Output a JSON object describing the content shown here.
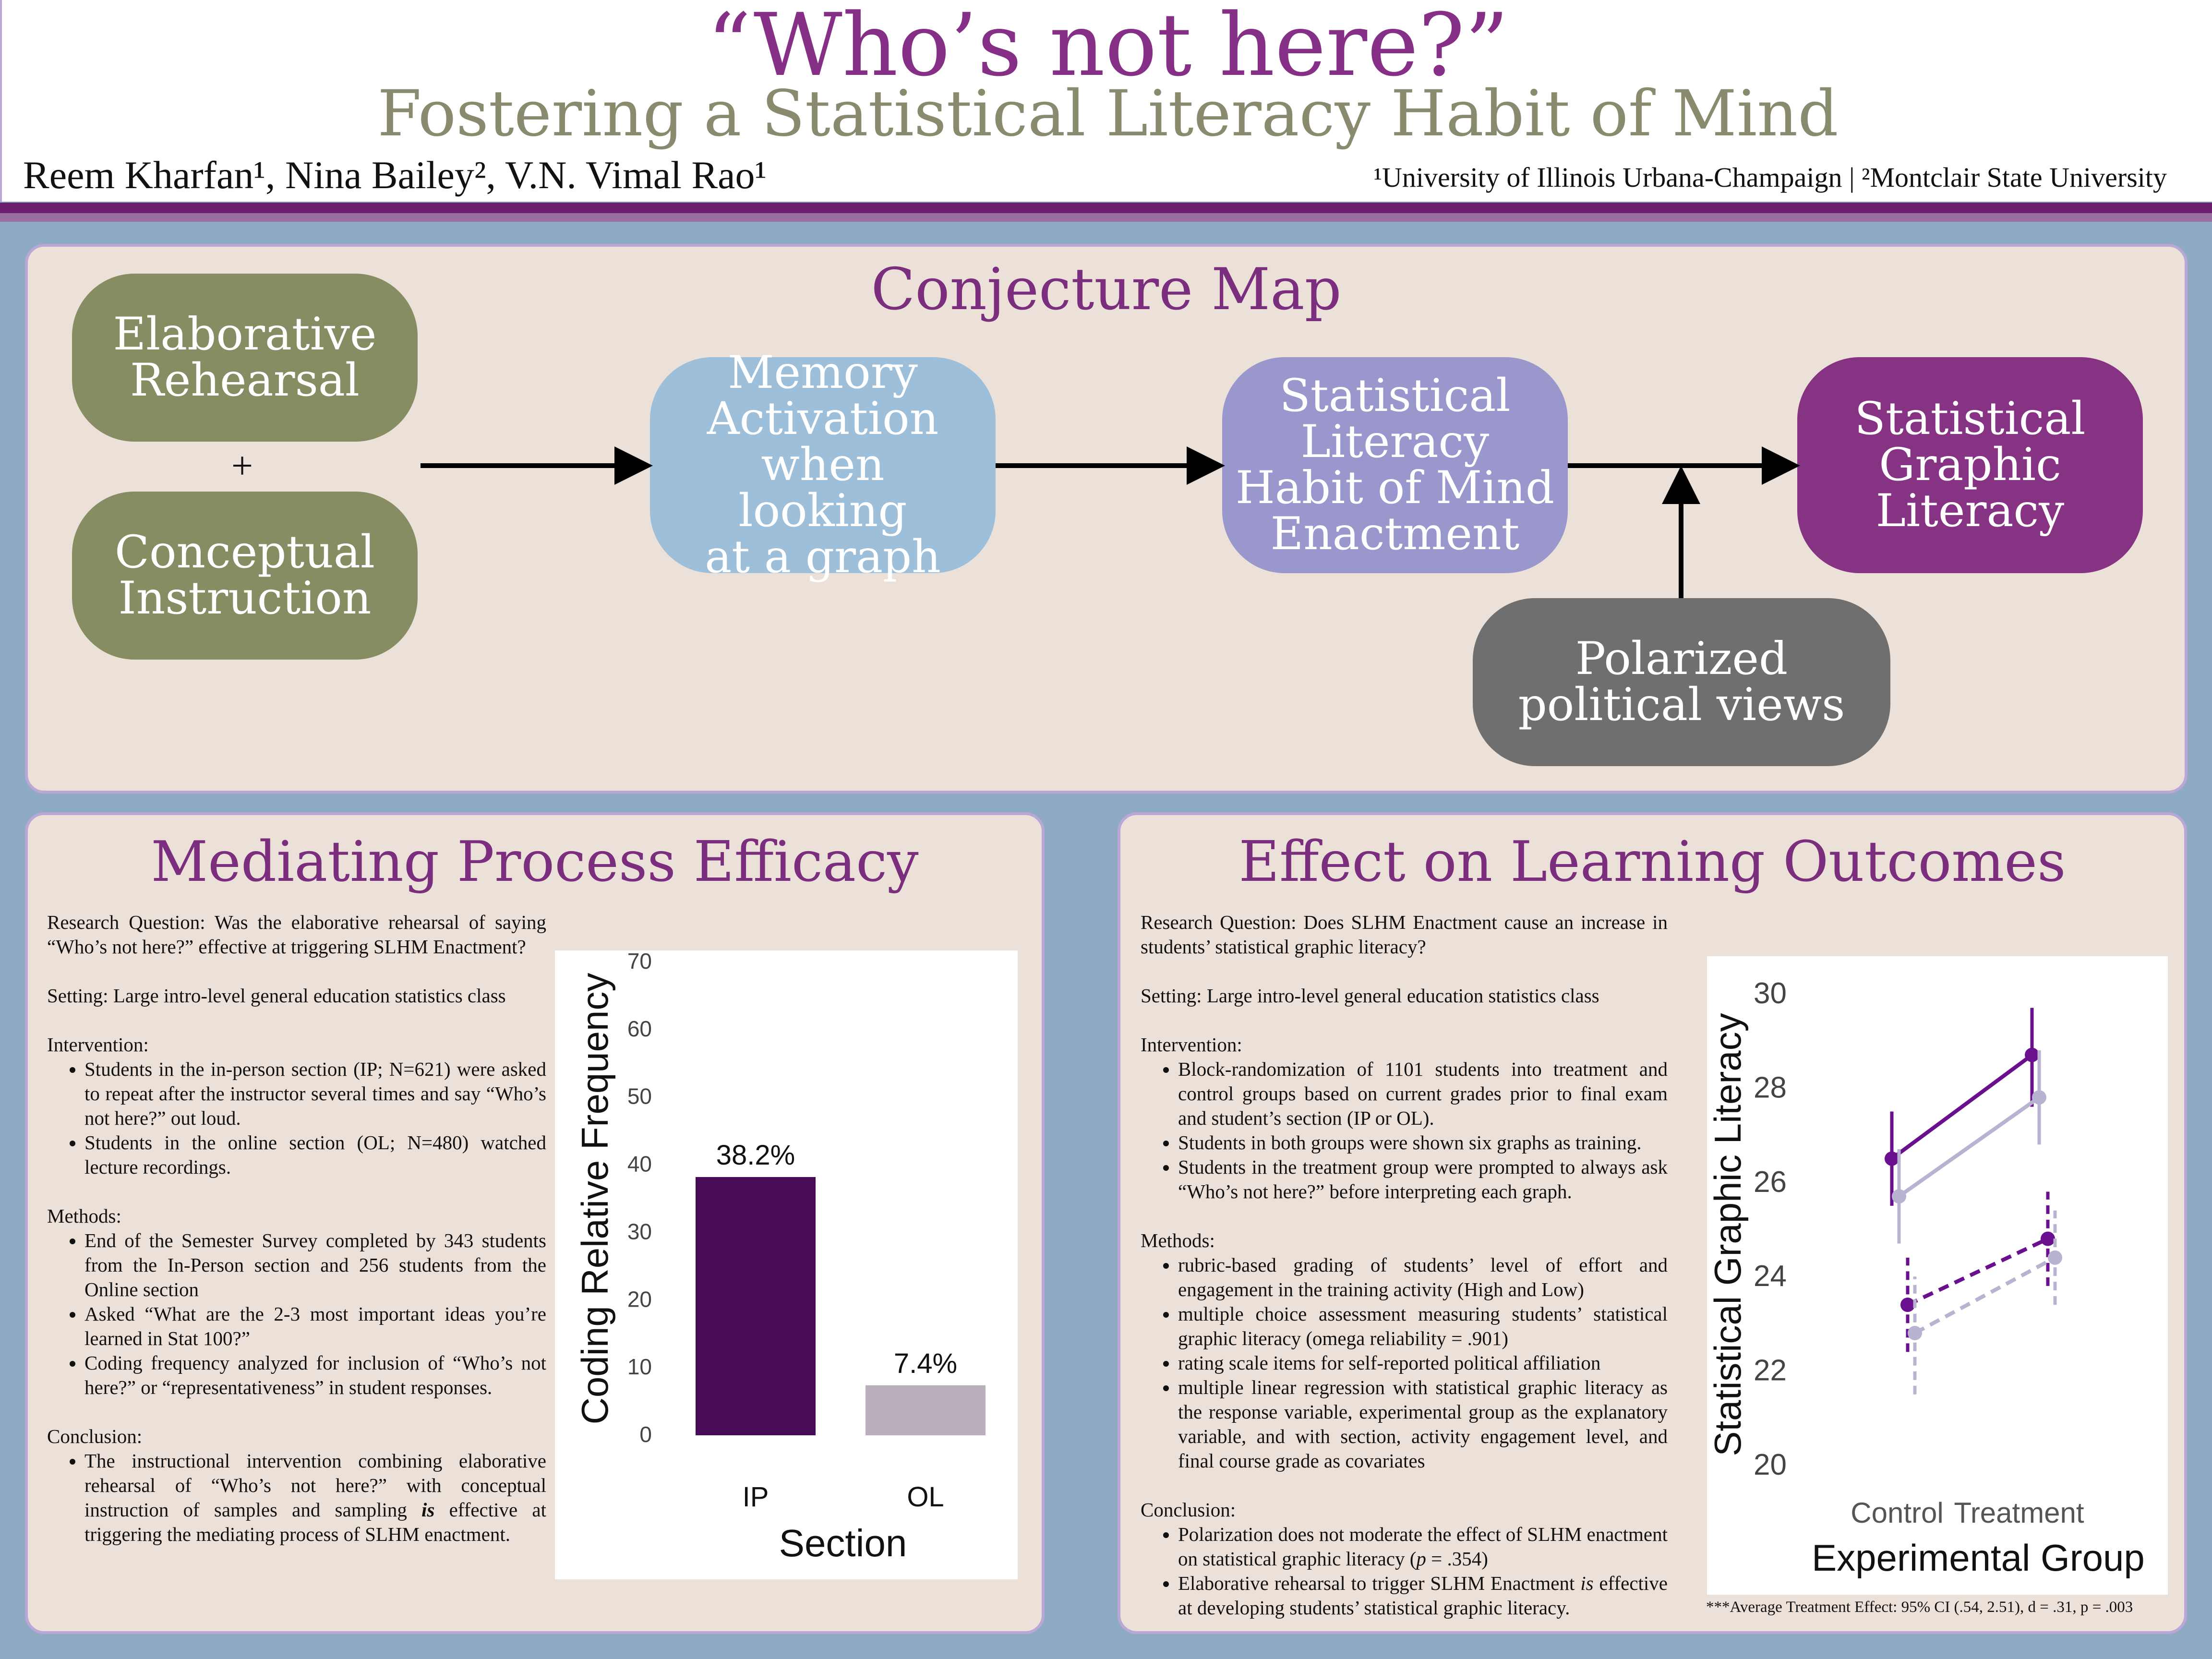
{
  "header": {
    "title": "“Who’s not here?”",
    "subtitle": "Fostering a Statistical Literacy Habit of Mind",
    "authors": "Reem Kharfan¹, Nina Bailey², V.N. Vimal Rao¹",
    "affiliations": "¹University of Illinois Urbana-Champaign | ²Montclair State University"
  },
  "conjecture": {
    "title": "Conjecture Map",
    "plus": "+",
    "nodes": {
      "elaborative": "Elaborative\nRehearsal",
      "conceptual": "Conceptual\nInstruction",
      "memory": "Memory\nActivation when\nlooking\nat a graph",
      "slhm": "Statistical\nLiteracy\nHabit of Mind\nEnactment",
      "sgl": "Statistical\nGraphic\nLiteracy",
      "polarized": "Polarized\npolitical views"
    },
    "colors": {
      "olive": "#868d62",
      "lightblue": "#9ebfda",
      "lavender": "#9a97cc",
      "purple": "#873384",
      "gray": "#6f6f6f"
    }
  },
  "mediating": {
    "title": "Mediating Process Efficacy",
    "rq": "Research Question: Was the elaborative rehearsal of saying “Who’s not here?” effective at triggering SLHM Enactment?",
    "setting": "Setting: Large intro-level general education statistics class",
    "intervention_head": "Intervention:",
    "intervention": [
      "Students in the in-person section (IP; N=621) were asked to repeat after the instructor several times and say “Who’s not here?” out loud.",
      "Students in the online section (OL; N=480) watched lecture recordings."
    ],
    "methods_head": "Methods:",
    "methods": [
      "End of the Semester Survey completed by 343 students from the In-Person section and 256 students from the Online section",
      "Asked “What are the 2-3 most important ideas you’re learned in Stat 100?”",
      "Coding frequency analyzed for inclusion of “Who’s not here?” or “representativeness” in student responses."
    ],
    "conclusion_head": "Conclusion:",
    "conclusion_pre": "The instructional intervention combining elaborative rehearsal of “Who’s not here?” with conceptual instruction of samples and sampling ",
    "conclusion_em": "is",
    "conclusion_post": " effective at triggering the mediating process of SLHM enactment."
  },
  "effect": {
    "title": "Effect on Learning Outcomes",
    "rq": "Research Question: Does SLHM Enactment cause an increase in students’ statistical graphic literacy?",
    "setting": "Setting: Large intro-level general education statistics class",
    "intervention_head": "Intervention:",
    "intervention": [
      "Block-randomization of 1101 students into treatment and control groups based on current grades prior to final exam and student’s section (IP or OL).",
      "Students in both groups were shown six graphs as training.",
      "Students in the treatment group were prompted to always ask “Who’s not here?” before interpreting each graph."
    ],
    "methods_head": "Methods:",
    "methods": [
      "rubric-based grading of students’ level of effort and engagement in the training activity (High and Low)",
      "multiple choice assessment measuring students’ statistical graphic literacy (omega reliability = .901)",
      "rating scale items for self-reported political affiliation",
      "multiple linear regression with statistical graphic literacy as the response variable, experimental group as the explanatory variable, and with section, activity engagement level, and final course grade as covariates"
    ],
    "conclusion_head": "Conclusion:",
    "conclusion1_pre": "Polarization does not moderate the effect of SLHM enactment on statistical graphic literacy (",
    "conclusion1_p": "p",
    "conclusion1_post": " = .354)",
    "conclusion2_pre": "Elaborative rehearsal to trigger SLHM Enactment ",
    "conclusion2_em": "is",
    "conclusion2_post": " effective at developing students’ statistical graphic literacy.",
    "footnote": "***Average Treatment Effect: 95% CI (.54, 2.51), d = .31, p = .003"
  },
  "chart_data": [
    {
      "type": "bar",
      "categories": [
        "IP",
        "OL"
      ],
      "values": [
        38.2,
        7.4
      ],
      "data_labels": [
        "38.2%",
        "7.4%"
      ],
      "colors": [
        "#470b58",
        "#bbafbe"
      ],
      "xlabel": "Section",
      "ylabel": "Coding Relative Frequency",
      "ylim": [
        0,
        70
      ],
      "yticks": [
        "0",
        "10",
        "20",
        "30",
        "40",
        "50",
        "60",
        "70"
      ],
      "grid": false
    },
    {
      "type": "line",
      "categories": [
        "Control",
        "Treatment"
      ],
      "xlabel": "Experimental Group",
      "ylabel": "Statistical Graphic Literacy",
      "ylim": [
        20,
        30
      ],
      "yticks": [
        "20",
        "22",
        "24",
        "26",
        "28",
        "30"
      ],
      "grid": false,
      "series": [
        {
          "values": [
            26.5,
            28.7
          ],
          "lower": [
            25.5,
            27.6
          ],
          "upper": [
            27.5,
            29.7
          ],
          "color": "#6a0f8e",
          "dash": false
        },
        {
          "values": [
            25.7,
            27.8
          ],
          "lower": [
            24.7,
            26.8
          ],
          "upper": [
            26.7,
            28.8
          ],
          "color": "#b9b3d1",
          "dash": false
        },
        {
          "values": [
            23.4,
            24.8
          ],
          "lower": [
            22.4,
            23.8
          ],
          "upper": [
            24.4,
            25.8
          ],
          "color": "#6a0f8e",
          "dash": true
        },
        {
          "values": [
            22.8,
            24.4
          ],
          "lower": [
            21.5,
            23.4
          ],
          "upper": [
            24.0,
            25.4
          ],
          "color": "#b9b3d1",
          "dash": true
        }
      ]
    }
  ]
}
